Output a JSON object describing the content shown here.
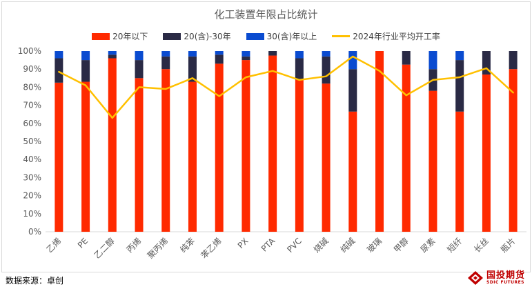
{
  "title": "化工装置年限占比统计",
  "legend": {
    "s1": "20年以下",
    "s2": "20(含)-30年",
    "s3": "30(含)年以上",
    "s4": "2024年行业平均开工率"
  },
  "colors": {
    "under20": "#ff2a00",
    "mid": "#2a2a45",
    "over30": "#0a4bd0",
    "line": "#ffc000"
  },
  "source": "数据来源：卓创",
  "brand": {
    "name": "国投期货",
    "en": "SDIC FUTURES"
  },
  "chart_data": {
    "type": "bar",
    "stacked": true,
    "title": "化工装置年限占比统计",
    "categories": [
      "乙烯",
      "PE",
      "乙二醇",
      "丙烯",
      "聚丙烯",
      "纯苯",
      "苯乙烯",
      "PX",
      "PTA",
      "PVC",
      "烧碱",
      "纯碱",
      "玻璃",
      "甲醇",
      "尿素",
      "短纤",
      "长丝",
      "瓶片"
    ],
    "series": [
      {
        "name": "20年以下",
        "values": [
          82.5,
          83,
          96,
          85,
          90,
          83,
          93,
          95,
          97.5,
          84,
          82,
          66.5,
          100,
          92.5,
          78,
          66.5,
          87,
          90
        ]
      },
      {
        "name": "20(含)-30年",
        "values": [
          13.5,
          12,
          2,
          10,
          7,
          14,
          5,
          2,
          2.5,
          12,
          15,
          23.5,
          0,
          7.5,
          12,
          28.5,
          13,
          10
        ]
      },
      {
        "name": "30(含)年以上",
        "values": [
          4,
          5,
          2,
          5,
          3,
          3,
          2,
          3,
          0,
          4,
          3,
          10,
          0,
          0,
          10,
          5,
          0,
          0
        ]
      },
      {
        "name": "2024年行业平均开工率",
        "type": "line",
        "values": [
          88.5,
          81,
          63,
          80,
          79,
          85,
          75,
          85.5,
          89,
          84,
          86,
          97,
          89,
          75.5,
          84,
          85.5,
          90.5,
          77
        ]
      }
    ],
    "ylim": [
      0,
      100
    ],
    "yticks": [
      "0%",
      "10%",
      "20%",
      "30%",
      "40%",
      "50%",
      "60%",
      "70%",
      "80%",
      "90%",
      "100%"
    ],
    "xlabel": "",
    "ylabel": "",
    "grid": false,
    "legend_position": "top"
  }
}
